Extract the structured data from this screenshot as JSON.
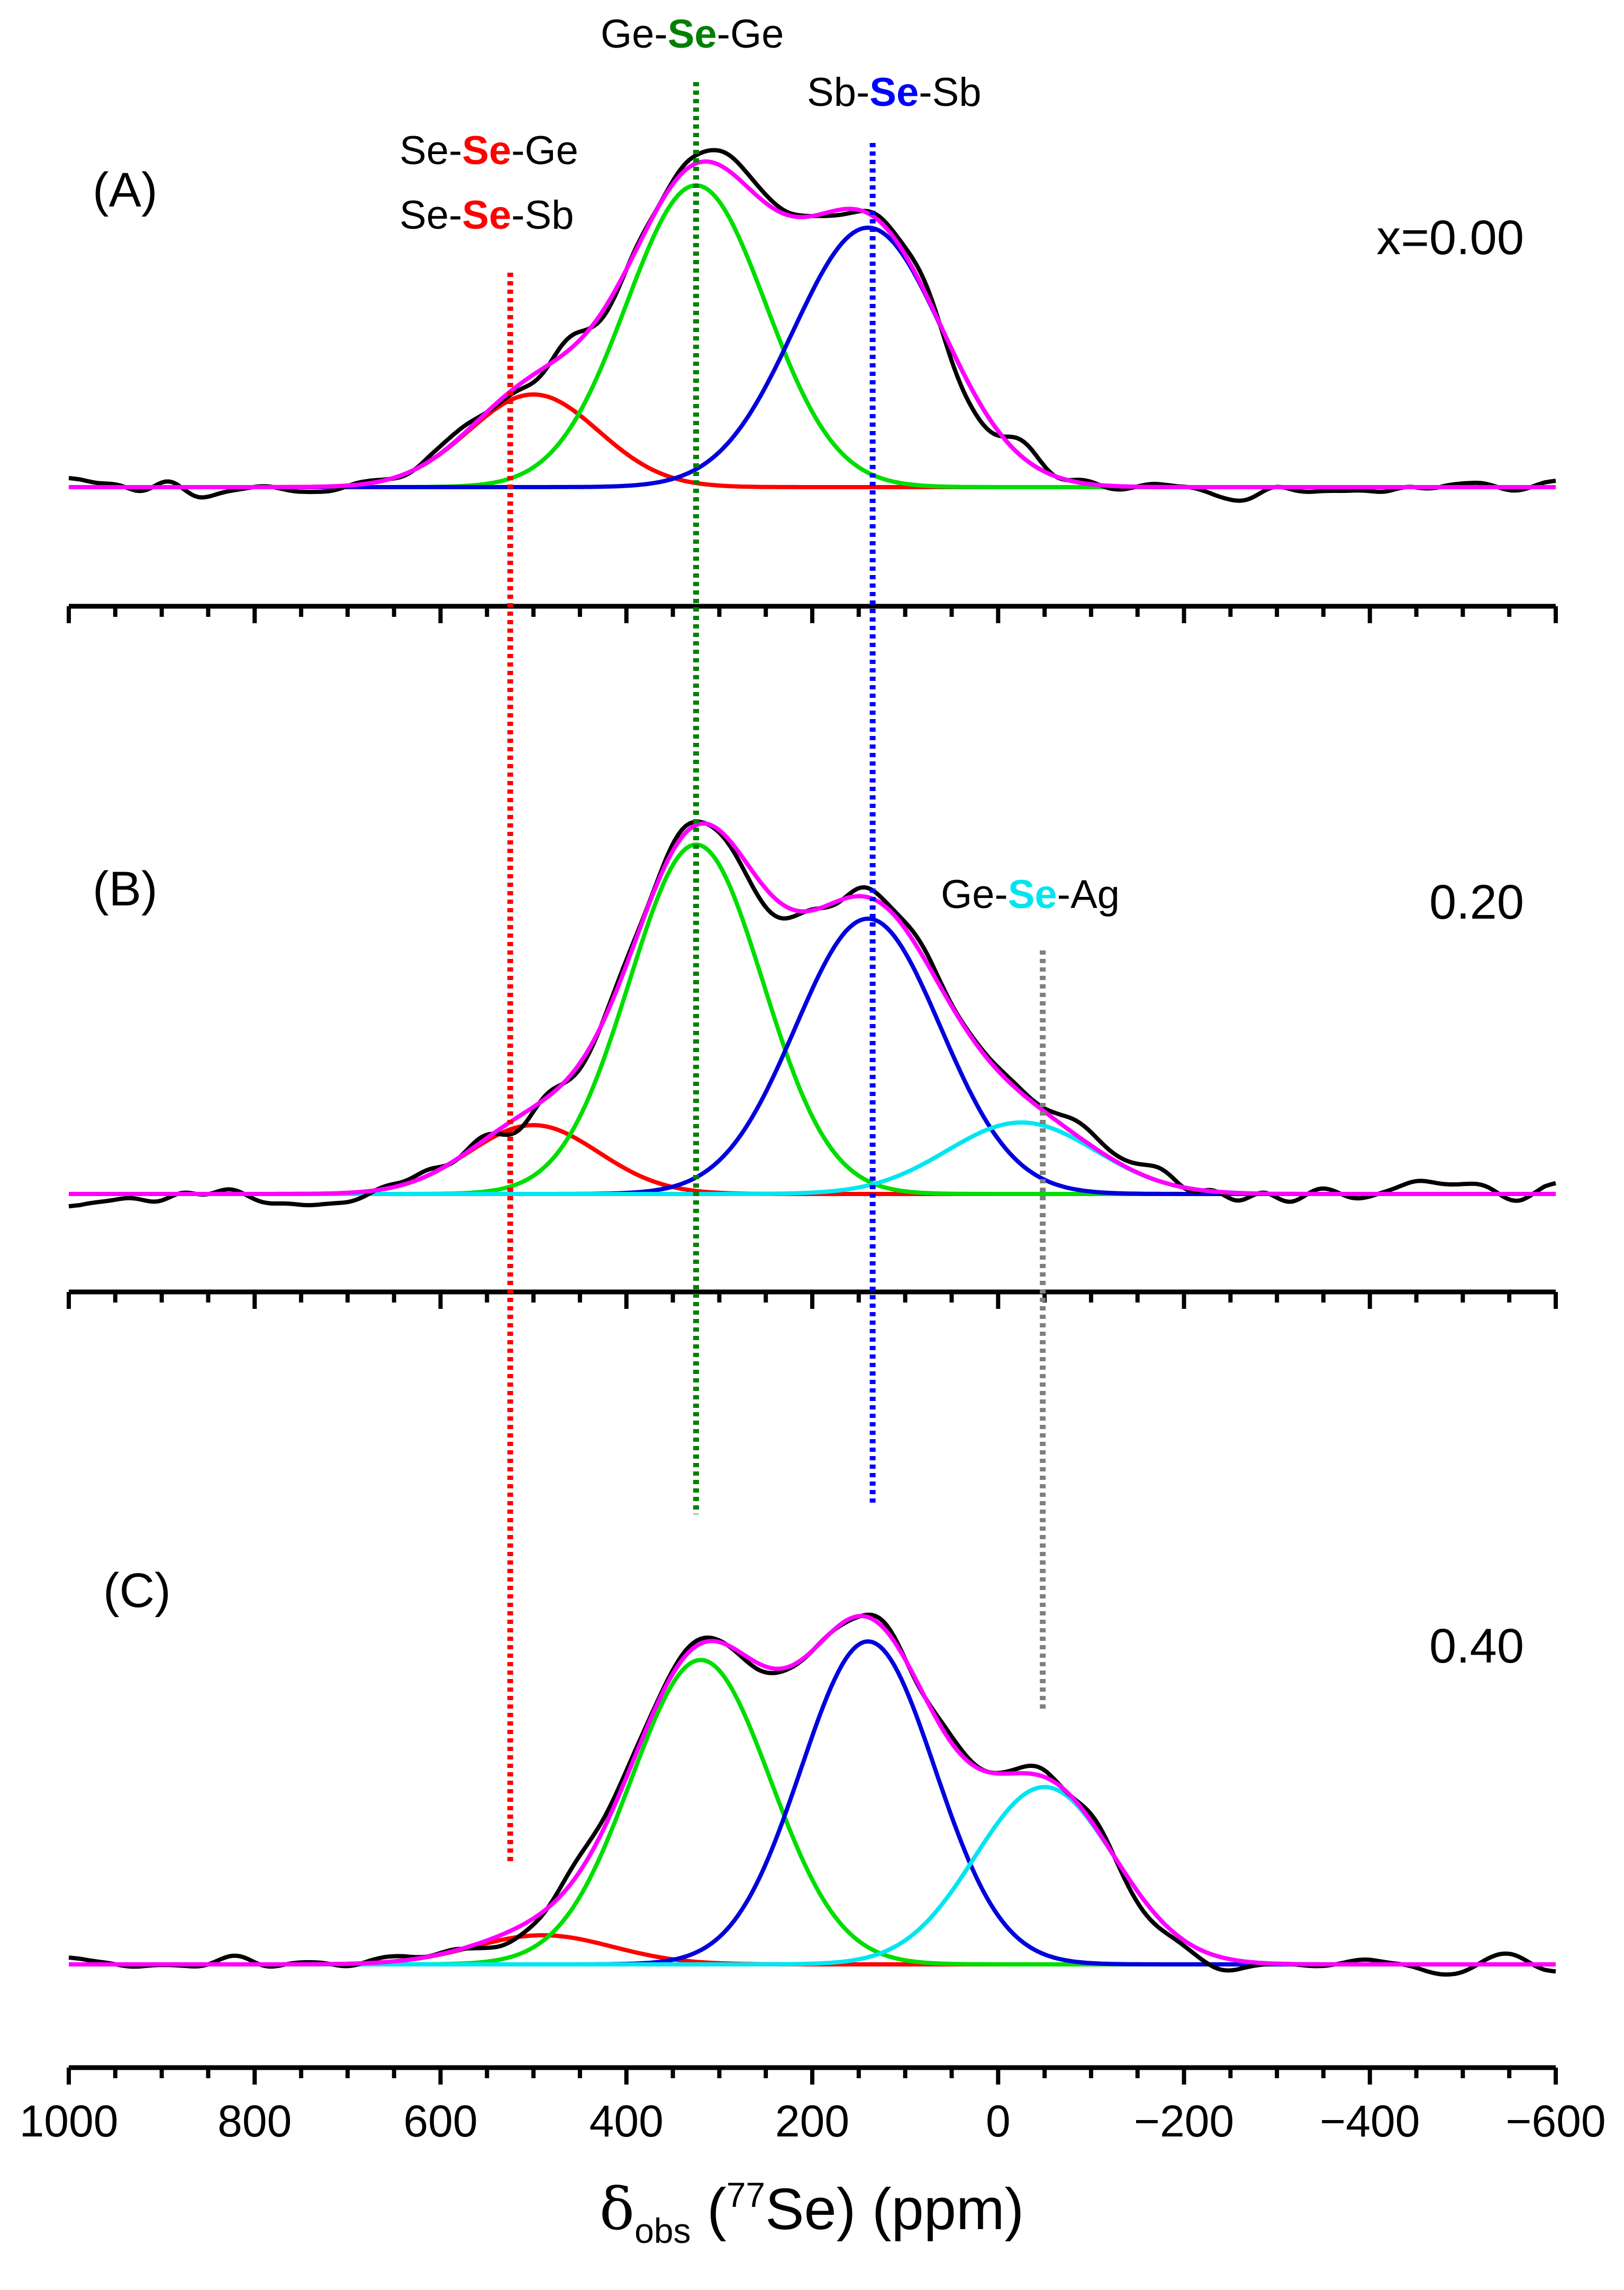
{
  "chart_data": {
    "type": "line",
    "title": "",
    "xlabel": {
      "symbol": "δ",
      "subscript": "obs",
      "open_paren": " (",
      "isotope_mass": "77",
      "nucleus": "Se",
      "close": ")",
      "unit": " (ppm)"
    },
    "x_range": [
      1000,
      -600
    ],
    "x_ticks": [
      1000,
      800,
      600,
      400,
      200,
      0,
      -200,
      -400,
      -600
    ],
    "x_tick_labels": [
      "1000",
      "800",
      "600",
      "400",
      "200",
      "0",
      "−200",
      "−400",
      "−600"
    ],
    "series_colors": {
      "red": "#ff0000",
      "green": "#00dd00",
      "blue": "#0000dd",
      "cyan": "#00e6f0",
      "fit": "#ff00ff",
      "experimental": "#000000"
    },
    "reference_lines": [
      {
        "name": "Se-Se-Ge / Se-Se-Sb",
        "position": 525,
        "color": "#ff0000"
      },
      {
        "name": "Ge-Se-Ge",
        "position": 325,
        "color": "#008000"
      },
      {
        "name": "Sb-Se-Sb",
        "position": 135,
        "color": "#0000ff"
      },
      {
        "name": "Ge-Se-Ag",
        "position": -48,
        "color": "#808080"
      }
    ],
    "site_labels": [
      {
        "pre": "Ge-",
        "mid": "Se",
        "post": "-Ge",
        "mid_color": "#008000"
      },
      {
        "pre": "Sb-",
        "mid": "Se",
        "post": "-Sb",
        "mid_color": "#0000ff"
      },
      {
        "pre": "Se-",
        "mid": "Se",
        "post": "-Ge",
        "mid_color": "#ff0000"
      },
      {
        "pre": "Se-",
        "mid": "Se",
        "post": "-Sb",
        "mid_color": "#ff0000"
      },
      {
        "pre": "Ge-",
        "mid": "Se",
        "post": "-Ag",
        "mid_color": "#00e6f0"
      }
    ],
    "panels": [
      {
        "label": "(A)",
        "composition": "x=0.00",
        "components": [
          {
            "name": "Se-Se-Ge/Sb",
            "color": "red",
            "center": 500,
            "height": 0.35,
            "sigma": 70
          },
          {
            "name": "Ge-Se-Ge",
            "color": "green",
            "center": 325,
            "height": 1.14,
            "sigma": 75
          },
          {
            "name": "Sb-Se-Sb",
            "color": "blue",
            "center": 140,
            "height": 0.98,
            "sigma": 80
          }
        ],
        "noise_amplitude": 0.07,
        "noise_seed": 3
      },
      {
        "label": "(B)",
        "composition": "0.20",
        "components": [
          {
            "name": "Se-Se-Ge/Sb",
            "color": "red",
            "center": 500,
            "height": 0.26,
            "sigma": 70
          },
          {
            "name": "Ge-Se-Ge",
            "color": "green",
            "center": 325,
            "height": 1.32,
            "sigma": 72
          },
          {
            "name": "Sb-Se-Sb",
            "color": "blue",
            "center": 140,
            "height": 1.04,
            "sigma": 78
          },
          {
            "name": "Ge-Se-Ag",
            "color": "cyan",
            "center": -25,
            "height": 0.27,
            "sigma": 80
          }
        ],
        "noise_amplitude": 0.07,
        "noise_seed": 11
      },
      {
        "label": "(C)",
        "composition": "0.40",
        "components": [
          {
            "name": "Se-Se-Ge/Sb",
            "color": "red",
            "center": 490,
            "height": 0.11,
            "sigma": 75
          },
          {
            "name": "Ge-Se-Ge",
            "color": "green",
            "center": 320,
            "height": 1.15,
            "sigma": 75
          },
          {
            "name": "Sb-Se-Sb",
            "color": "blue",
            "center": 140,
            "height": 1.22,
            "sigma": 72
          },
          {
            "name": "Ge-Se-Ag",
            "color": "cyan",
            "center": -50,
            "height": 0.67,
            "sigma": 75
          }
        ],
        "noise_amplitude": 0.06,
        "noise_seed": 29
      }
    ]
  }
}
